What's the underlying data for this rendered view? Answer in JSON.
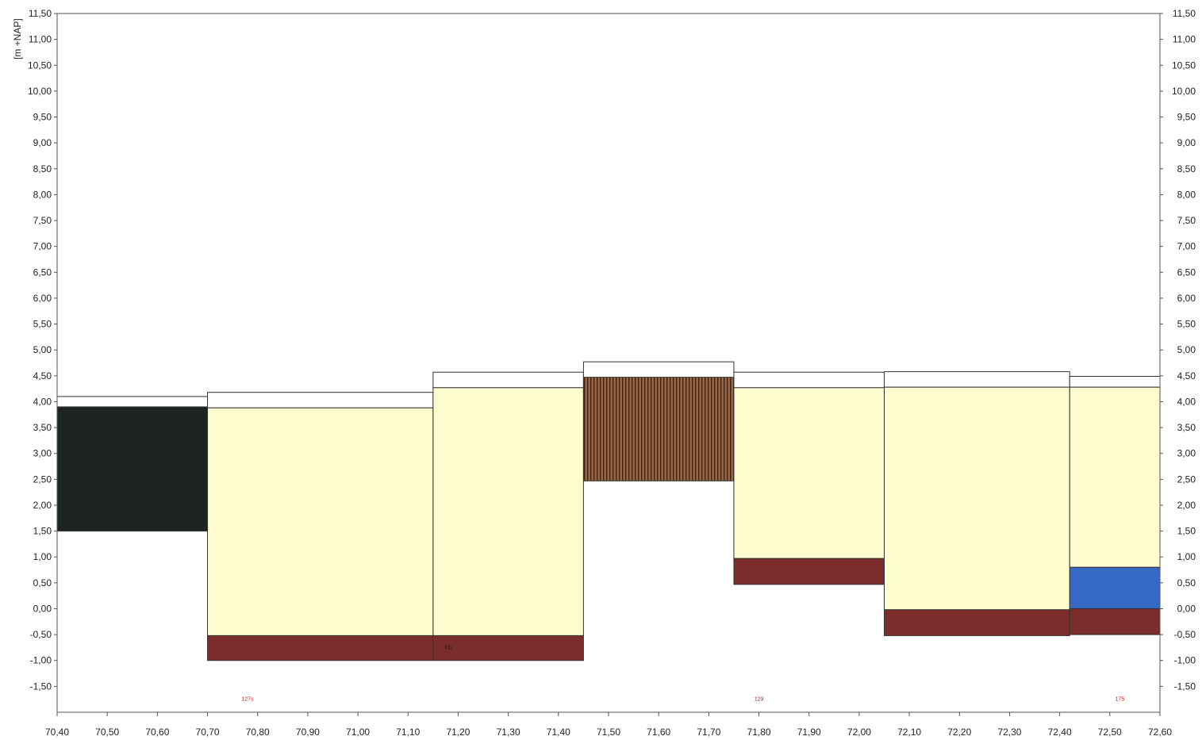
{
  "chart_data": {
    "type": "bar",
    "title": "",
    "xlabel": "",
    "ylabel": "[m +NAP]",
    "xlim": [
      70.4,
      72.6
    ],
    "ylim": [
      -2.0,
      11.5
    ],
    "x_ticks": [
      "70,40",
      "70,50",
      "70,60",
      "70,70",
      "70,80",
      "70,90",
      "71,00",
      "71,10",
      "71,20",
      "71,30",
      "71,40",
      "71,50",
      "71,60",
      "71,70",
      "71,80",
      "71,90",
      "72,00",
      "72,10",
      "72,20",
      "72,30",
      "72,40",
      "72,50",
      "72,60"
    ],
    "y_ticks": [
      "11,50",
      "11,00",
      "10,50",
      "10,00",
      "9,50",
      "9,00",
      "8,50",
      "8,00",
      "7,50",
      "7,00",
      "6,50",
      "6,00",
      "5,50",
      "5,00",
      "4,50",
      "4,00",
      "3,50",
      "3,00",
      "2,50",
      "2,00",
      "1,50",
      "1,00",
      "0,50",
      "0,00",
      "-0,50",
      "-1,00",
      "-1,50"
    ],
    "grid": false,
    "legend": "none",
    "colors": {
      "black": "#1e2421",
      "cream": "#fdfdd0",
      "maroon": "#7b2d2b",
      "hatched": "#a0643a",
      "blue": "#3569c6",
      "white": "#ffffff"
    },
    "layers": [
      {
        "x0": 70.4,
        "x1": 70.7,
        "bottom": 3.9,
        "top": 4.1,
        "fill": "white"
      },
      {
        "x0": 70.4,
        "x1": 70.7,
        "bottom": 1.5,
        "top": 3.9,
        "fill": "black"
      },
      {
        "x0": 70.7,
        "x1": 71.15,
        "bottom": 3.88,
        "top": 4.18,
        "fill": "white"
      },
      {
        "x0": 70.7,
        "x1": 71.15,
        "bottom": -0.52,
        "top": 3.88,
        "fill": "cream"
      },
      {
        "x0": 70.7,
        "x1": 71.15,
        "bottom": -1.0,
        "top": -0.52,
        "fill": "maroon"
      },
      {
        "x0": 71.15,
        "x1": 71.45,
        "bottom": 4.27,
        "top": 4.57,
        "fill": "white"
      },
      {
        "x0": 71.15,
        "x1": 71.45,
        "bottom": -0.52,
        "top": 4.27,
        "fill": "cream"
      },
      {
        "x0": 71.15,
        "x1": 71.45,
        "bottom": -1.0,
        "top": -0.52,
        "fill": "maroon"
      },
      {
        "x0": 71.45,
        "x1": 71.75,
        "bottom": 4.47,
        "top": 4.77,
        "fill": "white"
      },
      {
        "x0": 71.45,
        "x1": 71.75,
        "bottom": 2.47,
        "top": 4.47,
        "fill": "hatched"
      },
      {
        "x0": 71.75,
        "x1": 72.05,
        "bottom": 4.27,
        "top": 4.57,
        "fill": "white"
      },
      {
        "x0": 71.75,
        "x1": 72.05,
        "bottom": 0.97,
        "top": 4.27,
        "fill": "cream"
      },
      {
        "x0": 71.75,
        "x1": 72.05,
        "bottom": 0.47,
        "top": 0.97,
        "fill": "maroon"
      },
      {
        "x0": 72.05,
        "x1": 72.42,
        "bottom": 4.28,
        "top": 4.58,
        "fill": "white"
      },
      {
        "x0": 72.05,
        "x1": 72.42,
        "bottom": -0.02,
        "top": 4.28,
        "fill": "cream"
      },
      {
        "x0": 72.05,
        "x1": 72.42,
        "bottom": -0.52,
        "top": -0.02,
        "fill": "maroon"
      },
      {
        "x0": 72.42,
        "x1": 72.6,
        "bottom": 4.28,
        "top": 4.49,
        "fill": "white"
      },
      {
        "x0": 72.42,
        "x1": 72.6,
        "bottom": 0.8,
        "top": 4.28,
        "fill": "cream"
      },
      {
        "x0": 72.42,
        "x1": 72.6,
        "bottom": 0.0,
        "top": 0.8,
        "fill": "blue"
      },
      {
        "x0": 72.42,
        "x1": 72.6,
        "bottom": -0.5,
        "top": 0.0,
        "fill": "maroon"
      }
    ],
    "annotations": [
      {
        "text": "127s",
        "x": 70.78,
        "y": -1.78,
        "color": "#cc2222"
      },
      {
        "text": "129",
        "x": 71.8,
        "y": -1.78,
        "color": "#cc2222"
      },
      {
        "text": "175",
        "x": 72.52,
        "y": -1.78,
        "color": "#cc2222"
      },
      {
        "text": "kb",
        "x": 71.18,
        "y": -0.78,
        "color": "#222222"
      }
    ]
  }
}
